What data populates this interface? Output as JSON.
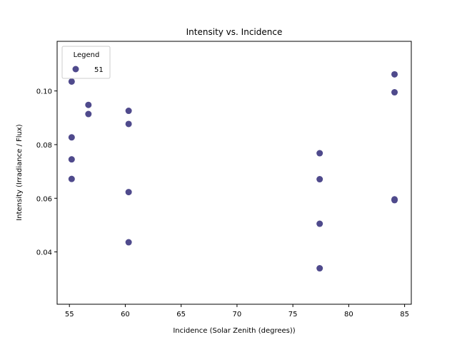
{
  "chart_data": {
    "type": "scatter",
    "title": "Intensity vs. Incidence",
    "xlabel": "Incidence (Solar Zenith (degrees))",
    "ylabel": "Intensity (Irradiance / Flux)",
    "xlim": [
      53.9,
      85.6
    ],
    "ylim": [
      0.0205,
      0.1185
    ],
    "xticks": [
      55,
      60,
      65,
      70,
      75,
      80,
      85
    ],
    "yticks": [
      0.04,
      0.06,
      0.08,
      0.1
    ],
    "ytick_labels": [
      "0.04",
      "0.06",
      "0.08",
      "0.10"
    ],
    "grid": false,
    "legend": {
      "title": "Legend",
      "placement": "top-left"
    },
    "series": [
      {
        "name": "51",
        "color": "#4f4a8c",
        "points": [
          [
            55.2,
            0.1035
          ],
          [
            55.2,
            0.0827
          ],
          [
            55.2,
            0.0745
          ],
          [
            55.2,
            0.0672
          ],
          [
            56.7,
            0.0948
          ],
          [
            56.7,
            0.0914
          ],
          [
            60.3,
            0.0926
          ],
          [
            60.3,
            0.0877
          ],
          [
            60.3,
            0.0623
          ],
          [
            60.3,
            0.0436
          ],
          [
            77.4,
            0.0768
          ],
          [
            77.4,
            0.0671
          ],
          [
            77.4,
            0.0505
          ],
          [
            77.4,
            0.0339
          ],
          [
            84.1,
            0.1062
          ],
          [
            84.1,
            0.0995
          ],
          [
            84.1,
            0.0596
          ],
          [
            84.1,
            0.0593
          ]
        ]
      }
    ]
  }
}
